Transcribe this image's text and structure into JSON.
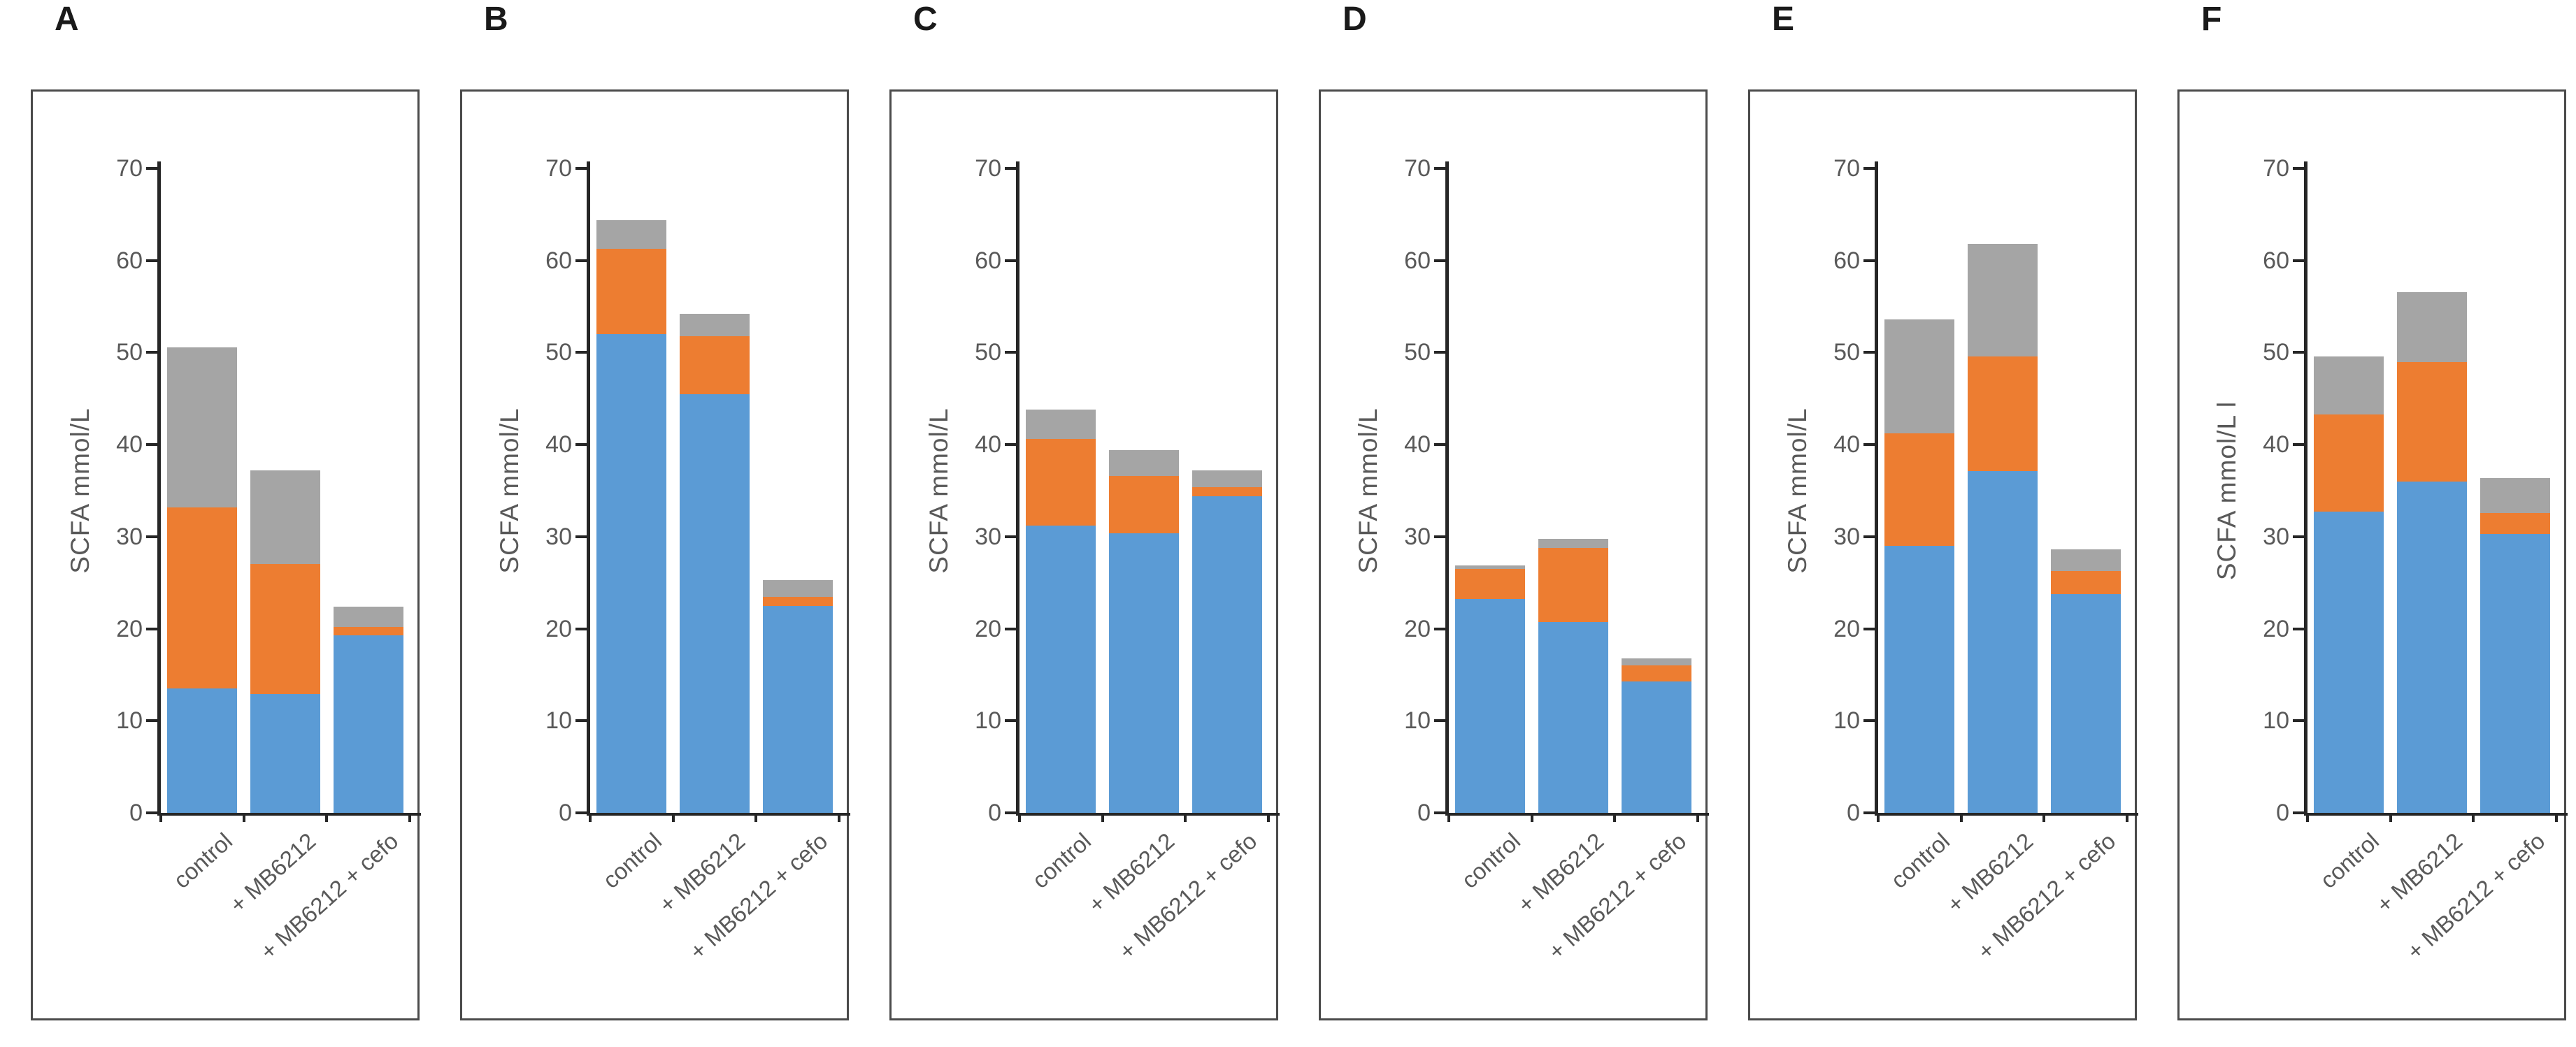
{
  "figure": {
    "background": "#ffffff"
  },
  "colors": {
    "blue": "#5B9BD5",
    "orange": "#ED7D31",
    "gray": "#A5A5A5",
    "axis_line": "#262626",
    "axis_text": "#595959",
    "panel_border": "#4b4b4b",
    "letter": "#1a1a1a"
  },
  "axis": {
    "ymin": 0,
    "ymax": 70,
    "ystep": 10,
    "yticks": [
      0,
      10,
      20,
      30,
      40,
      50,
      60,
      70
    ]
  },
  "categories": [
    "control",
    "+ MB6212",
    "+ MB6212 + cefo"
  ],
  "chart_data": [
    {
      "type": "bar",
      "stacked": true,
      "panel": "A",
      "title": "A",
      "ylabel": "SCFA mmol/L",
      "ylim": [
        0,
        70
      ],
      "yticks": [
        0,
        10,
        20,
        30,
        40,
        50,
        60,
        70
      ],
      "categories": [
        "control",
        "+ MB6212",
        "+ MB6212 + cefo"
      ],
      "series": [
        {
          "name": "blue-bottom-segment",
          "color_key": "blue",
          "values": [
            13.5,
            12.9,
            19.3
          ]
        },
        {
          "name": "orange-middle-segment",
          "color_key": "orange",
          "values": [
            19.7,
            14.1,
            0.9
          ]
        },
        {
          "name": "gray-top-segment",
          "color_key": "gray",
          "values": [
            17.4,
            10.2,
            2.2
          ]
        }
      ],
      "totals": [
        50.6,
        37.2,
        22.4
      ]
    },
    {
      "type": "bar",
      "stacked": true,
      "panel": "B",
      "title": "B",
      "ylabel": "SCFA mmol/L",
      "ylim": [
        0,
        70
      ],
      "yticks": [
        0,
        10,
        20,
        30,
        40,
        50,
        60,
        70
      ],
      "categories": [
        "control",
        "+ MB6212",
        "+ MB6212 + cefo"
      ],
      "series": [
        {
          "name": "blue-bottom-segment",
          "color_key": "blue",
          "values": [
            52.0,
            45.5,
            22.5
          ]
        },
        {
          "name": "orange-middle-segment",
          "color_key": "orange",
          "values": [
            9.3,
            6.3,
            1.0
          ]
        },
        {
          "name": "gray-top-segment",
          "color_key": "gray",
          "values": [
            3.1,
            2.4,
            1.8
          ]
        }
      ],
      "totals": [
        64.4,
        54.2,
        25.3
      ]
    },
    {
      "type": "bar",
      "stacked": true,
      "panel": "C",
      "title": "C",
      "ylabel": "SCFA mmol/L",
      "ylim": [
        0,
        70
      ],
      "yticks": [
        0,
        10,
        20,
        30,
        40,
        50,
        60,
        70
      ],
      "categories": [
        "control",
        "+ MB6212",
        "+ MB6212 + cefo"
      ],
      "series": [
        {
          "name": "blue-bottom-segment",
          "color_key": "blue",
          "values": [
            31.2,
            30.4,
            34.4
          ]
        },
        {
          "name": "orange-middle-segment",
          "color_key": "orange",
          "values": [
            9.4,
            6.2,
            1.0
          ]
        },
        {
          "name": "gray-top-segment",
          "color_key": "gray",
          "values": [
            3.2,
            2.8,
            1.8
          ]
        }
      ],
      "totals": [
        43.8,
        39.4,
        37.2
      ]
    },
    {
      "type": "bar",
      "stacked": true,
      "panel": "D",
      "title": "D",
      "ylabel": "SCFA mmol/L",
      "ylim": [
        0,
        70
      ],
      "yticks": [
        0,
        10,
        20,
        30,
        40,
        50,
        60,
        70
      ],
      "categories": [
        "control",
        "+ MB6212",
        "+ MB6212 + cefo"
      ],
      "series": [
        {
          "name": "blue-bottom-segment",
          "color_key": "blue",
          "values": [
            23.2,
            20.7,
            14.3
          ]
        },
        {
          "name": "orange-middle-segment",
          "color_key": "orange",
          "values": [
            3.3,
            8.1,
            1.7
          ]
        },
        {
          "name": "gray-top-segment",
          "color_key": "gray",
          "values": [
            0.4,
            1.0,
            0.8
          ]
        }
      ],
      "totals": [
        26.9,
        29.8,
        16.8
      ]
    },
    {
      "type": "bar",
      "stacked": true,
      "panel": "E",
      "title": "E",
      "ylabel": "SCFA mmol/L",
      "ylim": [
        0,
        70
      ],
      "yticks": [
        0,
        10,
        20,
        30,
        40,
        50,
        60,
        70
      ],
      "categories": [
        "control",
        "+ MB6212",
        "+ MB6212 + cefo"
      ],
      "series": [
        {
          "name": "blue-bottom-segment",
          "color_key": "blue",
          "values": [
            29.0,
            37.1,
            23.8
          ]
        },
        {
          "name": "orange-middle-segment",
          "color_key": "orange",
          "values": [
            12.2,
            12.5,
            2.5
          ]
        },
        {
          "name": "gray-top-segment",
          "color_key": "gray",
          "values": [
            12.4,
            12.2,
            2.3
          ]
        }
      ],
      "totals": [
        53.6,
        61.8,
        28.6
      ]
    },
    {
      "type": "bar",
      "stacked": true,
      "panel": "F",
      "title": "F",
      "ylabel": "SCFA mmol/L  l",
      "ylim": [
        0,
        70
      ],
      "yticks": [
        0,
        10,
        20,
        30,
        40,
        50,
        60,
        70
      ],
      "categories": [
        "control",
        "+ MB6212",
        "+ MB6212 + cefo"
      ],
      "series": [
        {
          "name": "blue-bottom-segment",
          "color_key": "blue",
          "values": [
            32.7,
            36.0,
            30.3
          ]
        },
        {
          "name": "orange-middle-segment",
          "color_key": "orange",
          "values": [
            10.6,
            13.0,
            2.3
          ]
        },
        {
          "name": "gray-top-segment",
          "color_key": "gray",
          "values": [
            6.3,
            7.6,
            3.8
          ]
        }
      ],
      "totals": [
        49.6,
        56.6,
        36.4
      ]
    }
  ]
}
